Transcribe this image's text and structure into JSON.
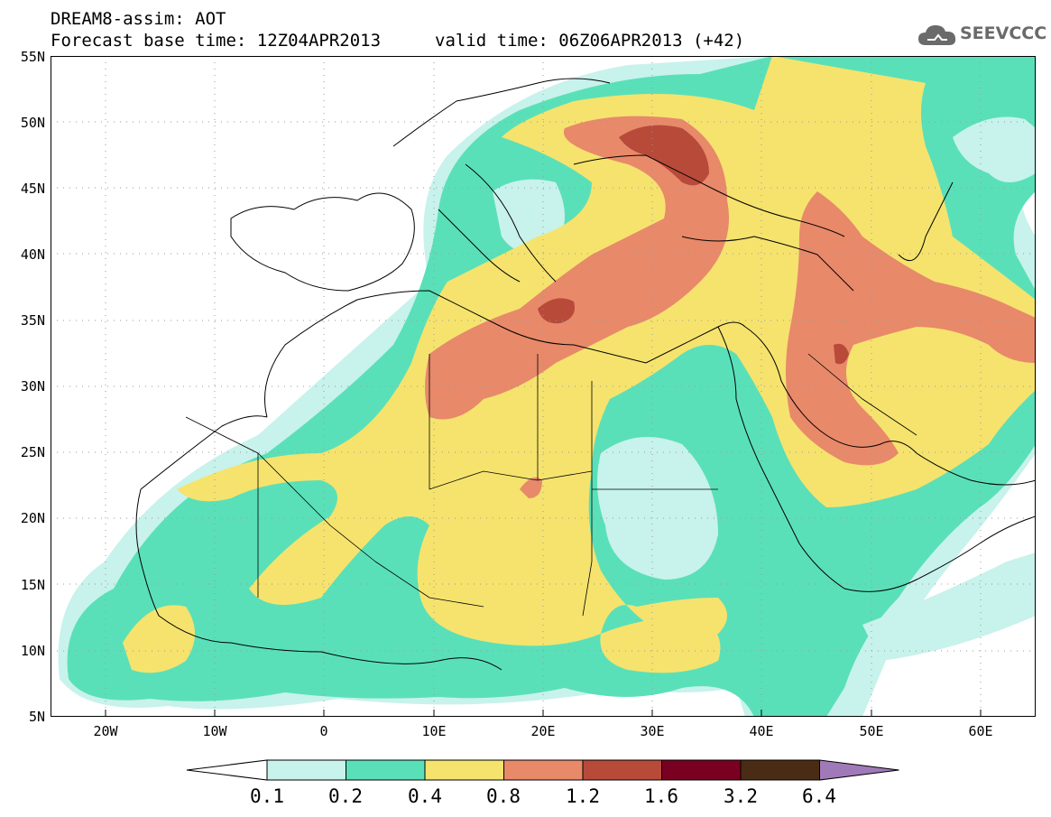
{
  "header": {
    "title_line1": "DREAM8-assim: AOT",
    "title_line2": "Forecast base time: 12Z04APR2013",
    "valid_time": "valid time: 06Z06APR2013 (+42)",
    "logo_text": "SEEVCCC",
    "logo_icon": "cloud-icon"
  },
  "map": {
    "lat_labels": [
      "55N",
      "50N",
      "45N",
      "40N",
      "35N",
      "30N",
      "25N",
      "20N",
      "15N",
      "10N",
      "5N"
    ],
    "lon_labels": [
      "20W",
      "10W",
      "0",
      "10E",
      "20E",
      "30E",
      "40E",
      "50E",
      "60E"
    ],
    "lon_range": [
      -25,
      65
    ],
    "lat_range": [
      5,
      55
    ],
    "grid": "dotted"
  },
  "colorbar": {
    "labels": [
      "0.1",
      "0.2",
      "0.4",
      "0.8",
      "1.2",
      "1.6",
      "3.2",
      "6.4"
    ],
    "colors": [
      "#ffffff",
      "#c8f2ec",
      "#5ae0b8",
      "#f5e36e",
      "#e8896a",
      "#b84a3a",
      "#7a0022",
      "#4a2c14",
      "#a07ab8"
    ]
  }
}
